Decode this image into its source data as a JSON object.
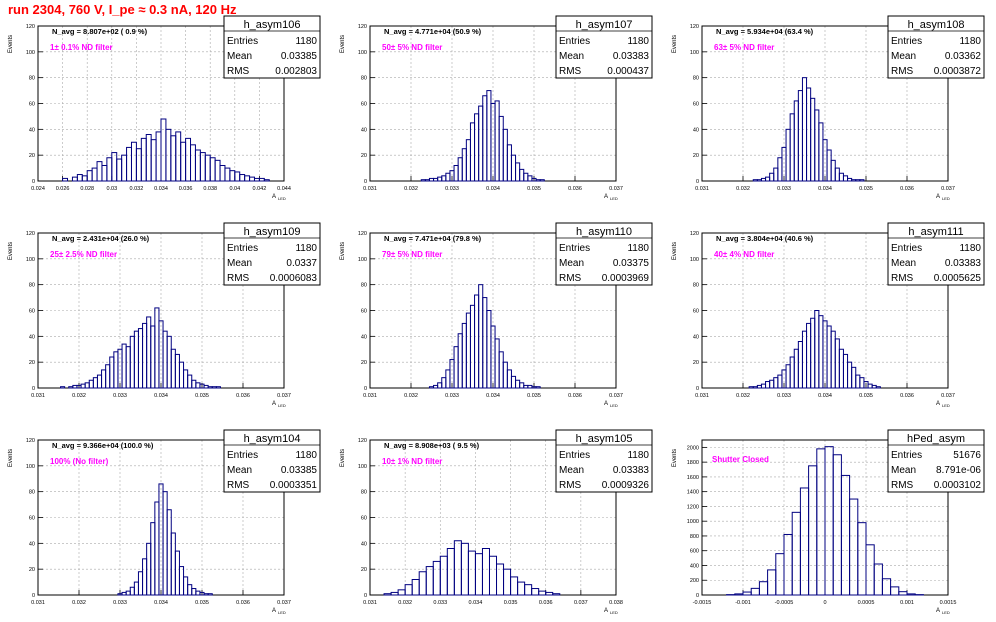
{
  "page_title": "run 2304,   760 V, I_pe ≈ 0.3 nA, 120 Hz",
  "colors": {
    "title": "#ff0000",
    "annotation": "#ff00ff",
    "histogram": "#000080",
    "grid": "#aaaaaa"
  },
  "stats_labels": {
    "entries": "Entries",
    "mean": "Mean",
    "rms": "RMS"
  },
  "y_axis_label": "Events",
  "x_axis_label": "A",
  "x_axis_subscript": "LED",
  "chart_data": [
    {
      "type": "bar",
      "name": "h_asym106",
      "navg": "N_avg = 8.807e+02 ( 0.9 %)",
      "annotation": "1± 0.1% ND filter",
      "entries": "1180",
      "mean": "0.03385",
      "rms": "0.002803",
      "xlim": [
        0.024,
        0.044
      ],
      "ylim": [
        0,
        120
      ],
      "xticks": [
        "0.024",
        "0.026",
        "0.028",
        "0.03",
        "0.032",
        "0.034",
        "0.036",
        "0.038",
        "0.04",
        "0.042",
        "0.044"
      ],
      "yticks": [
        "0",
        "20",
        "40",
        "60",
        "80",
        "100",
        "120"
      ],
      "x": [
        0.0262,
        0.0266,
        0.027,
        0.0274,
        0.0278,
        0.0282,
        0.0286,
        0.029,
        0.0294,
        0.0298,
        0.0302,
        0.0306,
        0.031,
        0.0314,
        0.0318,
        0.0322,
        0.0326,
        0.033,
        0.0334,
        0.0338,
        0.0342,
        0.0346,
        0.035,
        0.0354,
        0.0358,
        0.0362,
        0.0366,
        0.037,
        0.0374,
        0.0378,
        0.0382,
        0.0386,
        0.039,
        0.0394,
        0.0398,
        0.0402,
        0.0406,
        0.041,
        0.0414,
        0.0418,
        0.0422,
        0.0426
      ],
      "values": [
        2,
        0,
        3,
        5,
        4,
        8,
        10,
        15,
        12,
        18,
        22,
        17,
        20,
        26,
        30,
        25,
        33,
        36,
        32,
        38,
        48,
        40,
        35,
        38,
        30,
        33,
        28,
        24,
        22,
        20,
        18,
        16,
        12,
        10,
        8,
        7,
        5,
        4,
        3,
        2,
        2,
        1
      ]
    },
    {
      "type": "bar",
      "name": "h_asym107",
      "navg": "N_avg = 4.771e+04 (50.9 %)",
      "annotation": "50± 5% ND filter",
      "entries": "1180",
      "mean": "0.03383",
      "rms": "0.000437",
      "xlim": [
        0.031,
        0.037
      ],
      "ylim": [
        0,
        120
      ],
      "xticks": [
        "0.031",
        "0.032",
        "0.033",
        "0.034",
        "0.035",
        "0.036",
        "0.037"
      ],
      "yticks": [
        "0",
        "20",
        "40",
        "60",
        "80",
        "100",
        "120"
      ],
      "x": [
        0.0323,
        0.0324,
        0.0325,
        0.0326,
        0.0327,
        0.0328,
        0.0329,
        0.033,
        0.0331,
        0.0332,
        0.0333,
        0.0334,
        0.0335,
        0.0336,
        0.0337,
        0.0338,
        0.0339,
        0.034,
        0.0341,
        0.0342,
        0.0343,
        0.0344,
        0.0345,
        0.0346,
        0.0347,
        0.0348,
        0.0349,
        0.035,
        0.0351,
        0.0352
      ],
      "values": [
        1,
        1,
        2,
        2,
        3,
        4,
        6,
        8,
        12,
        18,
        25,
        32,
        45,
        52,
        58,
        66,
        70,
        60,
        62,
        50,
        40,
        28,
        20,
        14,
        9,
        6,
        4,
        2,
        1,
        1
      ]
    },
    {
      "type": "bar",
      "name": "h_asym108",
      "navg": "N_avg = 5.934e+04 (63.4 %)",
      "annotation": "63± 5% ND filter",
      "entries": "1180",
      "mean": "0.03362",
      "rms": "0.0003872",
      "xlim": [
        0.031,
        0.037
      ],
      "ylim": [
        0,
        120
      ],
      "xticks": [
        "0.031",
        "0.032",
        "0.033",
        "0.034",
        "0.035",
        "0.036",
        "0.037"
      ],
      "yticks": [
        "0",
        "20",
        "40",
        "60",
        "80",
        "100",
        "120"
      ],
      "x": [
        0.0323,
        0.0324,
        0.0325,
        0.0326,
        0.0327,
        0.0328,
        0.0329,
        0.033,
        0.0331,
        0.0332,
        0.0333,
        0.0334,
        0.0335,
        0.0336,
        0.0337,
        0.0338,
        0.0339,
        0.034,
        0.0341,
        0.0342,
        0.0343,
        0.0344,
        0.0345,
        0.0346,
        0.0347,
        0.0348,
        0.0349
      ],
      "values": [
        1,
        1,
        2,
        3,
        6,
        10,
        18,
        26,
        40,
        52,
        62,
        70,
        80,
        72,
        64,
        55,
        45,
        32,
        24,
        16,
        10,
        6,
        4,
        2,
        1,
        1,
        1
      ]
    },
    {
      "type": "bar",
      "name": "h_asym109",
      "navg": "N_avg = 2.431e+04 (26.0 %)",
      "annotation": "25± 2.5% ND filter",
      "entries": "1180",
      "mean": "0.0337",
      "rms": "0.0006083",
      "xlim": [
        0.031,
        0.037
      ],
      "ylim": [
        0,
        120
      ],
      "xticks": [
        "0.031",
        "0.032",
        "0.033",
        "0.034",
        "0.035",
        "0.036",
        "0.037"
      ],
      "yticks": [
        "0",
        "20",
        "40",
        "60",
        "80",
        "100",
        "120"
      ],
      "x": [
        0.0316,
        0.0317,
        0.0318,
        0.0319,
        0.032,
        0.0321,
        0.0322,
        0.0323,
        0.0324,
        0.0325,
        0.0326,
        0.0327,
        0.0328,
        0.0329,
        0.033,
        0.0331,
        0.0332,
        0.0333,
        0.0334,
        0.0335,
        0.0336,
        0.0337,
        0.0338,
        0.0339,
        0.034,
        0.0341,
        0.0342,
        0.0343,
        0.0344,
        0.0345,
        0.0346,
        0.0347,
        0.0348,
        0.0349,
        0.035,
        0.0351,
        0.0352,
        0.0353,
        0.0354
      ],
      "values": [
        1,
        0,
        1,
        2,
        2,
        3,
        4,
        6,
        8,
        10,
        14,
        18,
        24,
        28,
        30,
        34,
        32,
        40,
        44,
        46,
        50,
        55,
        48,
        62,
        52,
        44,
        40,
        30,
        26,
        20,
        14,
        10,
        6,
        4,
        3,
        2,
        1,
        1,
        1
      ]
    },
    {
      "type": "bar",
      "name": "h_asym110",
      "navg": "N_avg = 7.471e+04 (79.8 %)",
      "annotation": "79± 5% ND filter",
      "entries": "1180",
      "mean": "0.03375",
      "rms": "0.0003969",
      "xlim": [
        0.031,
        0.037
      ],
      "ylim": [
        0,
        120
      ],
      "xticks": [
        "0.031",
        "0.032",
        "0.033",
        "0.034",
        "0.035",
        "0.036",
        "0.037"
      ],
      "yticks": [
        "0",
        "20",
        "40",
        "60",
        "80",
        "100",
        "120"
      ],
      "x": [
        0.0325,
        0.0326,
        0.0327,
        0.0328,
        0.0329,
        0.033,
        0.0331,
        0.0332,
        0.0333,
        0.0334,
        0.0335,
        0.0336,
        0.0337,
        0.0338,
        0.0339,
        0.034,
        0.0341,
        0.0342,
        0.0343,
        0.0344,
        0.0345,
        0.0346,
        0.0347,
        0.0348,
        0.0349,
        0.035,
        0.0351
      ],
      "values": [
        1,
        2,
        4,
        8,
        14,
        22,
        32,
        42,
        50,
        58,
        64,
        72,
        80,
        70,
        60,
        48,
        38,
        28,
        20,
        14,
        9,
        6,
        4,
        2,
        2,
        1,
        1
      ]
    },
    {
      "type": "bar",
      "name": "h_asym111",
      "navg": "N_avg = 3.804e+04 (40.6 %)",
      "annotation": "40± 4% ND filter",
      "entries": "1180",
      "mean": "0.03383",
      "rms": "0.0005625",
      "xlim": [
        0.031,
        0.037
      ],
      "ylim": [
        0,
        120
      ],
      "xticks": [
        "0.031",
        "0.032",
        "0.033",
        "0.034",
        "0.035",
        "0.036",
        "0.037"
      ],
      "yticks": [
        "0",
        "20",
        "40",
        "60",
        "80",
        "100",
        "120"
      ],
      "x": [
        0.0322,
        0.0323,
        0.0324,
        0.0325,
        0.0326,
        0.0327,
        0.0328,
        0.0329,
        0.033,
        0.0331,
        0.0332,
        0.0333,
        0.0334,
        0.0335,
        0.0336,
        0.0337,
        0.0338,
        0.0339,
        0.034,
        0.0341,
        0.0342,
        0.0343,
        0.0344,
        0.0345,
        0.0346,
        0.0347,
        0.0348,
        0.0349,
        0.035,
        0.0351,
        0.0352,
        0.0353
      ],
      "values": [
        1,
        1,
        2,
        3,
        5,
        6,
        8,
        10,
        14,
        18,
        24,
        30,
        36,
        44,
        50,
        54,
        60,
        56,
        52,
        48,
        44,
        38,
        30,
        26,
        20,
        16,
        10,
        8,
        5,
        3,
        2,
        1
      ]
    },
    {
      "type": "bar",
      "name": "h_asym104",
      "navg": "N_avg = 9.366e+04 (100.0 %)",
      "annotation": "100% (No filter)",
      "entries": "1180",
      "mean": "0.03385",
      "rms": "0.0003351",
      "xlim": [
        0.031,
        0.037
      ],
      "ylim": [
        0,
        120
      ],
      "xticks": [
        "0.031",
        "0.032",
        "0.033",
        "0.034",
        "0.035",
        "0.036",
        "0.037"
      ],
      "yticks": [
        "0",
        "20",
        "40",
        "60",
        "80",
        "100",
        "120"
      ],
      "x": [
        0.033,
        0.0331,
        0.0332,
        0.0333,
        0.0334,
        0.0335,
        0.0336,
        0.0337,
        0.0338,
        0.0339,
        0.034,
        0.0341,
        0.0342,
        0.0343,
        0.0344,
        0.0345,
        0.0346,
        0.0347,
        0.0348,
        0.0349,
        0.035,
        0.0351,
        0.0352
      ],
      "values": [
        1,
        2,
        3,
        6,
        10,
        18,
        28,
        40,
        56,
        72,
        86,
        80,
        66,
        48,
        34,
        22,
        14,
        8,
        5,
        3,
        2,
        1,
        1
      ]
    },
    {
      "type": "bar",
      "name": "h_asym105",
      "navg": "N_avg = 8.908e+03 ( 9.5 %)",
      "annotation": "10± 1% ND filter",
      "entries": "1180",
      "mean": "0.03383",
      "rms": "0.0009326",
      "xlim": [
        0.031,
        0.038
      ],
      "ylim": [
        0,
        120
      ],
      "xticks": [
        "0.031",
        "0.032",
        "0.033",
        "0.034",
        "0.035",
        "0.036",
        "0.037",
        "0.038"
      ],
      "yticks": [
        "0",
        "20",
        "40",
        "60",
        "80",
        "100",
        "120"
      ],
      "x": [
        0.0315,
        0.0317,
        0.0319,
        0.0321,
        0.0323,
        0.0325,
        0.0327,
        0.0329,
        0.0331,
        0.0333,
        0.0335,
        0.0337,
        0.0339,
        0.0341,
        0.0343,
        0.0345,
        0.0347,
        0.0349,
        0.0351,
        0.0353,
        0.0355,
        0.0357,
        0.0359,
        0.0361,
        0.0363
      ],
      "values": [
        1,
        2,
        4,
        8,
        12,
        18,
        22,
        26,
        30,
        36,
        42,
        40,
        34,
        32,
        36,
        30,
        24,
        20,
        14,
        10,
        8,
        5,
        3,
        2,
        1
      ]
    },
    {
      "type": "bar",
      "name": "hPed_asym",
      "navg": "",
      "annotation": "Shutter Closed",
      "entries": "51676",
      "mean": "8.791e-06",
      "rms": "0.0003102",
      "xlim": [
        -0.0015,
        0.0015
      ],
      "ylim": [
        0,
        2100
      ],
      "xticks": [
        "-0.0015",
        "-0.001",
        "-0.0005",
        "0",
        "0.0005",
        "0.001",
        "0.0015"
      ],
      "yticks": [
        "0",
        "200",
        "400",
        "600",
        "800",
        "1000",
        "1200",
        "1400",
        "1600",
        "1800",
        "2000"
      ],
      "x": [
        -0.00115,
        -0.00105,
        -0.00095,
        -0.00085,
        -0.00075,
        -0.00065,
        -0.00055,
        -0.00045,
        -0.00035,
        -0.00025,
        -0.00015,
        -5e-05,
        5e-05,
        0.00015,
        0.00025,
        0.00035,
        0.00045,
        0.00055,
        0.00065,
        0.00075,
        0.00085,
        0.00095,
        0.00105,
        0.00115
      ],
      "values": [
        5,
        15,
        40,
        90,
        180,
        340,
        560,
        820,
        1120,
        1450,
        1750,
        1980,
        2010,
        1900,
        1620,
        1300,
        980,
        680,
        420,
        220,
        110,
        45,
        15,
        5
      ]
    }
  ]
}
